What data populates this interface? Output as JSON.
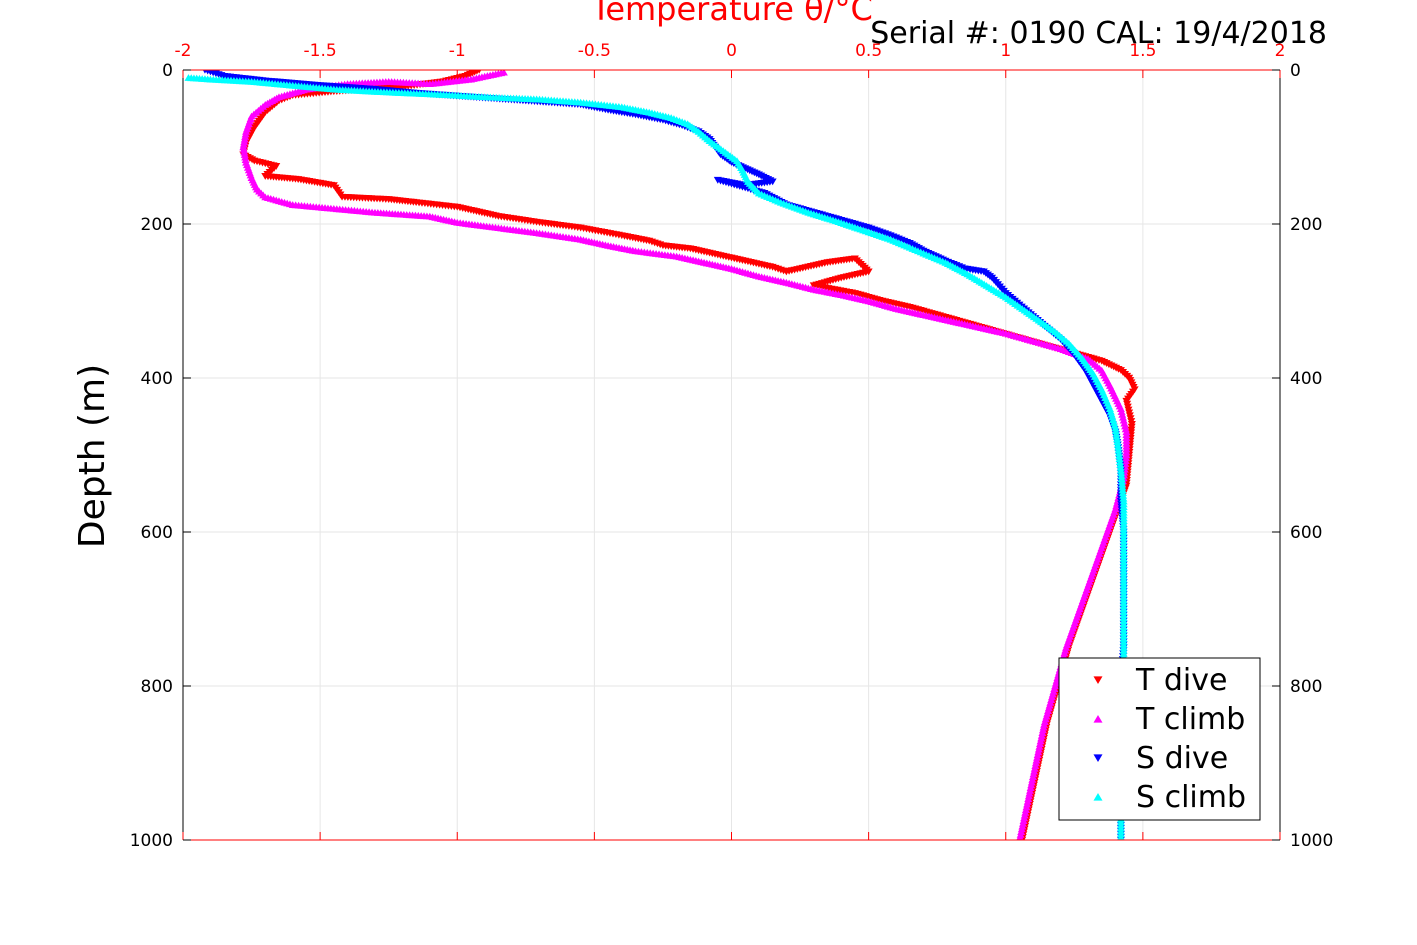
{
  "chart_data": {
    "type": "scatter",
    "title": "Temperature θ/°C",
    "annotation": "Serial #: 0190  CAL: 19/4/2018",
    "xlabel": "Temperature θ/°C",
    "ylabel": "Depth (m)",
    "xlim": [
      -2,
      2
    ],
    "ylim": [
      0,
      1000
    ],
    "y_reversed": true,
    "x_axis_position": "top",
    "grid": true,
    "legend_position": "bottom-right",
    "x_ticks": [
      "-2",
      "-1.5",
      "-1",
      "-0.5",
      "0",
      "0.5",
      "1",
      "1.5",
      "2"
    ],
    "y_ticks": [
      "0",
      "200",
      "400",
      "600",
      "800",
      "1000"
    ],
    "colors": {
      "axis_top": "#ff0000",
      "T dive": "#ff0000",
      "T climb": "#ff00ff",
      "S dive": "#0000ff",
      "S climb": "#00ffff"
    },
    "series": [
      {
        "name": "T dive",
        "marker": "triangle-down",
        "color": "#ff0000",
        "points": [
          [
            -0.92,
            0
          ],
          [
            -0.97,
            8
          ],
          [
            -1.05,
            15
          ],
          [
            -1.2,
            22
          ],
          [
            -1.45,
            28
          ],
          [
            -1.6,
            33
          ],
          [
            -1.65,
            40
          ],
          [
            -1.7,
            55
          ],
          [
            -1.74,
            75
          ],
          [
            -1.77,
            95
          ],
          [
            -1.78,
            110
          ],
          [
            -1.74,
            118
          ],
          [
            -1.66,
            125
          ],
          [
            -1.7,
            138
          ],
          [
            -1.58,
            142
          ],
          [
            -1.45,
            150
          ],
          [
            -1.42,
            165
          ],
          [
            -1.25,
            168
          ],
          [
            -1.15,
            172
          ],
          [
            -1.0,
            178
          ],
          [
            -0.95,
            182
          ],
          [
            -0.85,
            190
          ],
          [
            -0.7,
            198
          ],
          [
            -0.55,
            205
          ],
          [
            -0.4,
            215
          ],
          [
            -0.3,
            222
          ],
          [
            -0.25,
            228
          ],
          [
            -0.15,
            232
          ],
          [
            -0.05,
            240
          ],
          [
            0.05,
            248
          ],
          [
            0.15,
            256
          ],
          [
            0.2,
            262
          ],
          [
            0.35,
            250
          ],
          [
            0.45,
            245
          ],
          [
            0.5,
            262
          ],
          [
            0.4,
            270
          ],
          [
            0.3,
            280
          ],
          [
            0.45,
            290
          ],
          [
            0.55,
            300
          ],
          [
            0.65,
            308
          ],
          [
            0.75,
            318
          ],
          [
            0.85,
            328
          ],
          [
            0.95,
            338
          ],
          [
            1.05,
            348
          ],
          [
            1.15,
            358
          ],
          [
            1.25,
            368
          ],
          [
            1.35,
            378
          ],
          [
            1.42,
            390
          ],
          [
            1.45,
            400
          ],
          [
            1.47,
            415
          ],
          [
            1.44,
            430
          ],
          [
            1.46,
            460
          ],
          [
            1.45,
            500
          ],
          [
            1.44,
            540
          ],
          [
            1.41,
            570
          ],
          [
            1.37,
            610
          ],
          [
            1.33,
            650
          ],
          [
            1.28,
            700
          ],
          [
            1.23,
            750
          ],
          [
            1.19,
            800
          ],
          [
            1.15,
            850
          ],
          [
            1.12,
            900
          ],
          [
            1.09,
            950
          ],
          [
            1.06,
            1000
          ]
        ]
      },
      {
        "name": "T climb",
        "marker": "triangle-up",
        "color": "#ff00ff",
        "points": [
          [
            -0.83,
            3
          ],
          [
            -0.95,
            12
          ],
          [
            -1.1,
            18
          ],
          [
            -1.25,
            15
          ],
          [
            -1.4,
            18
          ],
          [
            -1.55,
            25
          ],
          [
            -1.65,
            35
          ],
          [
            -1.7,
            45
          ],
          [
            -1.75,
            60
          ],
          [
            -1.77,
            80
          ],
          [
            -1.78,
            100
          ],
          [
            -1.77,
            120
          ],
          [
            -1.75,
            140
          ],
          [
            -1.73,
            155
          ],
          [
            -1.7,
            165
          ],
          [
            -1.6,
            175
          ],
          [
            -1.45,
            180
          ],
          [
            -1.3,
            185
          ],
          [
            -1.1,
            190
          ],
          [
            -1.0,
            198
          ],
          [
            -0.85,
            205
          ],
          [
            -0.7,
            212
          ],
          [
            -0.55,
            220
          ],
          [
            -0.45,
            228
          ],
          [
            -0.35,
            235
          ],
          [
            -0.2,
            242
          ],
          [
            -0.1,
            250
          ],
          [
            0.0,
            258
          ],
          [
            0.1,
            268
          ],
          [
            0.2,
            276
          ],
          [
            0.3,
            285
          ],
          [
            0.4,
            292
          ],
          [
            0.5,
            300
          ],
          [
            0.6,
            310
          ],
          [
            0.7,
            318
          ],
          [
            0.8,
            326
          ],
          [
            0.9,
            334
          ],
          [
            1.0,
            342
          ],
          [
            1.1,
            352
          ],
          [
            1.2,
            362
          ],
          [
            1.3,
            375
          ],
          [
            1.35,
            390
          ],
          [
            1.38,
            410
          ],
          [
            1.42,
            440
          ],
          [
            1.44,
            470
          ],
          [
            1.44,
            500
          ],
          [
            1.43,
            530
          ],
          [
            1.4,
            570
          ],
          [
            1.36,
            610
          ],
          [
            1.32,
            650
          ],
          [
            1.27,
            700
          ],
          [
            1.22,
            750
          ],
          [
            1.18,
            800
          ],
          [
            1.14,
            850
          ],
          [
            1.11,
            900
          ],
          [
            1.08,
            950
          ],
          [
            1.05,
            1000
          ]
        ]
      },
      {
        "name": "S dive",
        "marker": "triangle-down",
        "color": "#0000ff",
        "points": [
          [
            -1.92,
            0
          ],
          [
            -1.85,
            8
          ],
          [
            -1.7,
            14
          ],
          [
            -1.5,
            20
          ],
          [
            -1.3,
            25
          ],
          [
            -1.15,
            30
          ],
          [
            -0.95,
            35
          ],
          [
            -0.75,
            40
          ],
          [
            -0.55,
            45
          ],
          [
            -0.45,
            52
          ],
          [
            -0.35,
            58
          ],
          [
            -0.25,
            65
          ],
          [
            -0.18,
            72
          ],
          [
            -0.12,
            80
          ],
          [
            -0.08,
            90
          ],
          [
            -0.06,
            100
          ],
          [
            -0.04,
            110
          ],
          [
            0.0,
            120
          ],
          [
            0.05,
            128
          ],
          [
            0.1,
            136
          ],
          [
            0.15,
            145
          ],
          [
            0.05,
            150
          ],
          [
            -0.05,
            143
          ],
          [
            0.12,
            160
          ],
          [
            0.2,
            175
          ],
          [
            0.3,
            185
          ],
          [
            0.4,
            195
          ],
          [
            0.5,
            205
          ],
          [
            0.58,
            215
          ],
          [
            0.65,
            225
          ],
          [
            0.7,
            235
          ],
          [
            0.78,
            248
          ],
          [
            0.85,
            258
          ],
          [
            0.92,
            262
          ],
          [
            0.95,
            270
          ],
          [
            1.0,
            290
          ],
          [
            1.05,
            305
          ],
          [
            1.1,
            320
          ],
          [
            1.15,
            335
          ],
          [
            1.2,
            350
          ],
          [
            1.25,
            370
          ],
          [
            1.29,
            390
          ],
          [
            1.32,
            410
          ],
          [
            1.35,
            430
          ],
          [
            1.38,
            450
          ],
          [
            1.4,
            470
          ],
          [
            1.41,
            490
          ],
          [
            1.42,
            520
          ],
          [
            1.42,
            560
          ],
          [
            1.43,
            600
          ],
          [
            1.43,
            650
          ],
          [
            1.43,
            700
          ],
          [
            1.43,
            750
          ],
          [
            1.42,
            800
          ],
          [
            1.42,
            850
          ],
          [
            1.42,
            900
          ],
          [
            1.42,
            950
          ],
          [
            1.42,
            1000
          ]
        ]
      },
      {
        "name": "S climb",
        "marker": "triangle-up",
        "color": "#00ffff",
        "points": [
          [
            -1.98,
            10
          ],
          [
            -1.9,
            12
          ],
          [
            -1.75,
            15
          ],
          [
            -1.6,
            20
          ],
          [
            -1.45,
            25
          ],
          [
            -1.3,
            28
          ],
          [
            -1.05,
            32
          ],
          [
            -0.9,
            35
          ],
          [
            -0.7,
            38
          ],
          [
            -0.55,
            42
          ],
          [
            -0.4,
            48
          ],
          [
            -0.3,
            55
          ],
          [
            -0.22,
            62
          ],
          [
            -0.16,
            70
          ],
          [
            -0.12,
            80
          ],
          [
            -0.08,
            92
          ],
          [
            -0.03,
            105
          ],
          [
            0.02,
            118
          ],
          [
            0.04,
            130
          ],
          [
            0.06,
            145
          ],
          [
            0.1,
            160
          ],
          [
            0.18,
            172
          ],
          [
            0.28,
            185
          ],
          [
            0.38,
            196
          ],
          [
            0.48,
            208
          ],
          [
            0.58,
            220
          ],
          [
            0.68,
            235
          ],
          [
            0.78,
            250
          ],
          [
            0.86,
            265
          ],
          [
            0.93,
            280
          ],
          [
            1.0,
            295
          ],
          [
            1.06,
            310
          ],
          [
            1.12,
            325
          ],
          [
            1.18,
            340
          ],
          [
            1.23,
            355
          ],
          [
            1.28,
            375
          ],
          [
            1.32,
            395
          ],
          [
            1.35,
            415
          ],
          [
            1.38,
            440
          ],
          [
            1.4,
            465
          ],
          [
            1.41,
            490
          ],
          [
            1.42,
            520
          ],
          [
            1.43,
            560
          ],
          [
            1.43,
            600
          ],
          [
            1.43,
            650
          ],
          [
            1.43,
            700
          ],
          [
            1.43,
            750
          ],
          [
            1.43,
            800
          ],
          [
            1.43,
            850
          ],
          [
            1.42,
            900
          ],
          [
            1.42,
            950
          ],
          [
            1.42,
            1000
          ]
        ]
      }
    ]
  }
}
